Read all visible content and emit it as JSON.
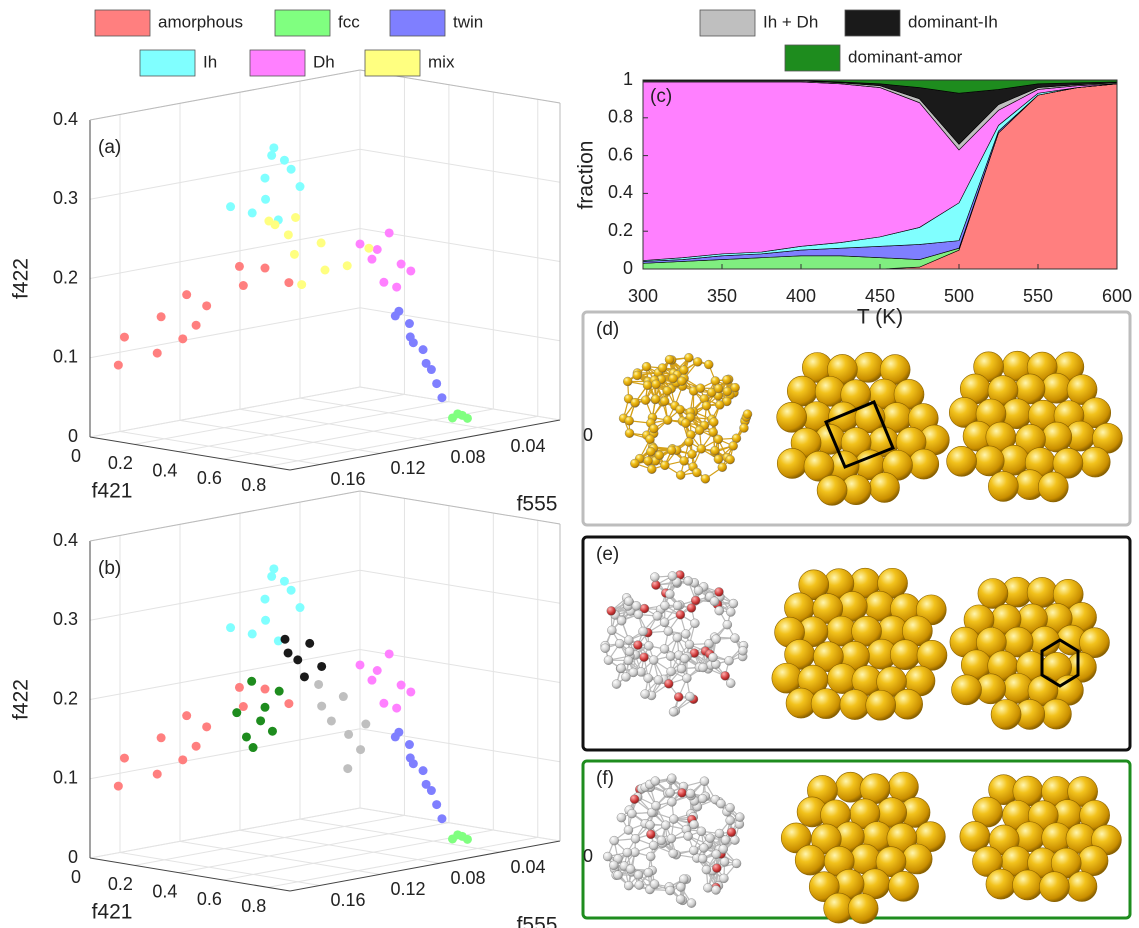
{
  "chart_data": [
    {
      "type": "scatter3d",
      "panel": "(a)",
      "xlabel": "f421",
      "ylabel": "f555",
      "zlabel": "f422",
      "xlim": [
        0,
        0.9
      ],
      "ylim": [
        0,
        0.18
      ],
      "zlim": [
        0,
        0.4
      ],
      "xticks": [
        0,
        0.2,
        0.4,
        0.6,
        0.8
      ],
      "yticks": [
        0,
        0.04,
        0.08,
        0.12,
        0.16
      ],
      "zticks": [
        0,
        0.1,
        0.2,
        0.3,
        0.4
      ],
      "series": [
        {
          "name": "amorphous",
          "color": "#ff7f7f",
          "x": [
            0.02,
            0.05,
            0.08,
            0.12,
            0.15,
            0.18,
            0.1,
            0.06,
            0.2,
            0.22,
            0.14,
            0.03
          ],
          "y": [
            0.16,
            0.14,
            0.13,
            0.12,
            0.1,
            0.09,
            0.15,
            0.17,
            0.11,
            0.08,
            0.13,
            0.12
          ],
          "z": [
            0.12,
            0.14,
            0.11,
            0.15,
            0.17,
            0.19,
            0.1,
            0.09,
            0.2,
            0.17,
            0.13,
            0.16
          ]
        },
        {
          "name": "fcc",
          "color": "#80ff80",
          "x": [
            0.72,
            0.73,
            0.74,
            0.73
          ],
          "y": [
            0.045,
            0.04,
            0.038,
            0.043
          ],
          "z": [
            0.01,
            0.012,
            0.008,
            0.015
          ]
        },
        {
          "name": "twin",
          "color": "#7f7fff",
          "x": [
            0.85,
            0.83,
            0.8,
            0.79,
            0.77,
            0.76,
            0.75,
            0.74,
            0.8,
            0.78
          ],
          "y": [
            0.1,
            0.09,
            0.085,
            0.075,
            0.07,
            0.065,
            0.06,
            0.055,
            0.095,
            0.08
          ],
          "z": [
            0.17,
            0.15,
            0.13,
            0.11,
            0.09,
            0.08,
            0.06,
            0.04,
            0.16,
            0.12
          ]
        },
        {
          "name": "Ih",
          "color": "#80ffff",
          "x": [
            0.45,
            0.48,
            0.5,
            0.52,
            0.46,
            0.54,
            0.49,
            0.43,
            0.51,
            0.47
          ],
          "y": [
            0.13,
            0.13,
            0.12,
            0.14,
            0.14,
            0.12,
            0.13,
            0.15,
            0.13,
            0.12
          ],
          "z": [
            0.33,
            0.36,
            0.34,
            0.31,
            0.29,
            0.32,
            0.37,
            0.3,
            0.28,
            0.35
          ]
        },
        {
          "name": "Dh",
          "color": "#ff80ff",
          "x": [
            0.82,
            0.84,
            0.86,
            0.83,
            0.85,
            0.87,
            0.81,
            0.84
          ],
          "y": [
            0.11,
            0.105,
            0.1,
            0.115,
            0.11,
            0.095,
            0.12,
            0.1
          ],
          "z": [
            0.25,
            0.27,
            0.23,
            0.24,
            0.21,
            0.22,
            0.26,
            0.2
          ]
        },
        {
          "name": "mix",
          "color": "#ffff80",
          "x": [
            0.38,
            0.42,
            0.45,
            0.5,
            0.55,
            0.4,
            0.48,
            0.58,
            0.36,
            0.52
          ],
          "y": [
            0.1,
            0.11,
            0.09,
            0.1,
            0.09,
            0.12,
            0.11,
            0.08,
            0.11,
            0.12
          ],
          "z": [
            0.22,
            0.25,
            0.2,
            0.24,
            0.21,
            0.27,
            0.19,
            0.23,
            0.26,
            0.28
          ]
        }
      ]
    },
    {
      "type": "scatter3d",
      "panel": "(b)",
      "xlabel": "f421",
      "ylabel": "f555",
      "zlabel": "f422",
      "xlim": [
        0,
        0.9
      ],
      "ylim": [
        0,
        0.18
      ],
      "zlim": [
        0,
        0.4
      ],
      "xticks": [
        0,
        0.2,
        0.4,
        0.6,
        0.8
      ],
      "yticks": [
        0,
        0.04,
        0.08,
        0.12,
        0.16
      ],
      "zticks": [
        0,
        0.1,
        0.2,
        0.3,
        0.4
      ],
      "series": [
        {
          "color": "#ff7f7f",
          "x": [
            0.02,
            0.05,
            0.08,
            0.12,
            0.15,
            0.18,
            0.1,
            0.06,
            0.2,
            0.22,
            0.14,
            0.03
          ],
          "y": [
            0.16,
            0.14,
            0.13,
            0.12,
            0.1,
            0.09,
            0.15,
            0.17,
            0.11,
            0.08,
            0.13,
            0.12
          ],
          "z": [
            0.12,
            0.14,
            0.11,
            0.15,
            0.17,
            0.19,
            0.1,
            0.09,
            0.2,
            0.17,
            0.13,
            0.16
          ]
        },
        {
          "color": "#80ff80",
          "x": [
            0.72,
            0.73,
            0.74,
            0.73
          ],
          "y": [
            0.045,
            0.04,
            0.038,
            0.043
          ],
          "z": [
            0.01,
            0.012,
            0.008,
            0.015
          ]
        },
        {
          "color": "#7f7fff",
          "x": [
            0.85,
            0.83,
            0.8,
            0.79,
            0.77,
            0.76,
            0.75,
            0.74,
            0.8,
            0.78
          ],
          "y": [
            0.1,
            0.09,
            0.085,
            0.075,
            0.07,
            0.065,
            0.06,
            0.055,
            0.095,
            0.08
          ],
          "z": [
            0.17,
            0.15,
            0.13,
            0.11,
            0.09,
            0.08,
            0.06,
            0.04,
            0.16,
            0.12
          ]
        },
        {
          "color": "#80ffff",
          "x": [
            0.45,
            0.48,
            0.5,
            0.52,
            0.46,
            0.54,
            0.49,
            0.43,
            0.51,
            0.47
          ],
          "y": [
            0.13,
            0.13,
            0.12,
            0.14,
            0.14,
            0.12,
            0.13,
            0.15,
            0.13,
            0.12
          ],
          "z": [
            0.33,
            0.36,
            0.34,
            0.31,
            0.29,
            0.32,
            0.37,
            0.3,
            0.28,
            0.35
          ]
        },
        {
          "color": "#ff80ff",
          "x": [
            0.82,
            0.84,
            0.86,
            0.83,
            0.85,
            0.87,
            0.81,
            0.84
          ],
          "y": [
            0.11,
            0.105,
            0.1,
            0.115,
            0.11,
            0.095,
            0.12,
            0.1
          ],
          "z": [
            0.25,
            0.27,
            0.23,
            0.24,
            0.21,
            0.22,
            0.26,
            0.2
          ]
        },
        {
          "name": "Ih + Dh",
          "color": "#bfbfbf",
          "x": [
            0.85,
            0.87,
            0.86,
            0.88,
            0.84,
            0.89,
            0.86,
            0.87
          ],
          "y": [
            0.145,
            0.14,
            0.135,
            0.13,
            0.15,
            0.14,
            0.155,
            0.125
          ],
          "z": [
            0.2,
            0.23,
            0.18,
            0.16,
            0.22,
            0.14,
            0.25,
            0.19
          ]
        },
        {
          "name": "dominant-Ih",
          "color": "#1a1a1a",
          "x": [
            0.8,
            0.82,
            0.84,
            0.79,
            0.83,
            0.81
          ],
          "y": [
            0.16,
            0.155,
            0.15,
            0.165,
            0.16,
            0.17
          ],
          "z": [
            0.28,
            0.3,
            0.27,
            0.29,
            0.26,
            0.31
          ]
        },
        {
          "name": "dominant-amor",
          "color": "#1e8c1e",
          "x": [
            0.68,
            0.72,
            0.65,
            0.75,
            0.7,
            0.62,
            0.74,
            0.66
          ],
          "y": [
            0.167,
            0.17,
            0.172,
            0.165,
            0.175,
            0.174,
            0.168,
            0.17
          ],
          "z": [
            0.2,
            0.22,
            0.18,
            0.24,
            0.17,
            0.21,
            0.19,
            0.25
          ]
        }
      ]
    },
    {
      "type": "area",
      "panel": "(c)",
      "xlabel": "T (K)",
      "ylabel": "fraction",
      "x": [
        300,
        325,
        350,
        375,
        400,
        425,
        450,
        475,
        500,
        525,
        550,
        575,
        600
      ],
      "xlim": [
        300,
        600
      ],
      "ylim": [
        0,
        1
      ],
      "xticks": [
        300,
        350,
        400,
        450,
        500,
        550,
        600
      ],
      "yticks": [
        0,
        0.2,
        0.4,
        0.6,
        0.8,
        1
      ],
      "series": [
        {
          "color": "#ff7f7f",
          "values": [
            0,
            0,
            0,
            0,
            0,
            0,
            0,
            0.01,
            0.1,
            0.72,
            0.92,
            0.96,
            0.98
          ]
        },
        {
          "color": "#80ee80",
          "values": [
            0.03,
            0.04,
            0.05,
            0.06,
            0.07,
            0.07,
            0.06,
            0.04,
            0.01,
            0,
            0,
            0,
            0
          ]
        },
        {
          "color": "#7f7fff",
          "values": [
            0.01,
            0.01,
            0.02,
            0.02,
            0.03,
            0.04,
            0.06,
            0.08,
            0.04,
            0.01,
            0,
            0,
            0
          ]
        },
        {
          "color": "#80ffff",
          "values": [
            0.005,
            0.01,
            0.01,
            0.01,
            0.02,
            0.03,
            0.05,
            0.09,
            0.2,
            0.03,
            0.01,
            0,
            0
          ]
        },
        {
          "color": "#ff80ff",
          "values": [
            0.945,
            0.93,
            0.91,
            0.9,
            0.87,
            0.84,
            0.79,
            0.66,
            0.28,
            0.08,
            0.02,
            0.01,
            0
          ]
        },
        {
          "color": "#bfbfbf",
          "values": [
            0.005,
            0.005,
            0.005,
            0.005,
            0.005,
            0.005,
            0.01,
            0.02,
            0.03,
            0.03,
            0.01,
            0.005,
            0.005
          ]
        },
        {
          "color": "#1a1a1a",
          "values": [
            0.003,
            0.003,
            0.003,
            0.003,
            0.003,
            0.005,
            0.01,
            0.06,
            0.27,
            0.08,
            0.02,
            0.01,
            0.005
          ]
        },
        {
          "color": "#1e8c1e",
          "values": [
            0.002,
            0.002,
            0.002,
            0.002,
            0.002,
            0.01,
            0.02,
            0.04,
            0.07,
            0.05,
            0.02,
            0.015,
            0.01
          ]
        }
      ]
    }
  ],
  "image_panels": [
    "(d)",
    "(e)",
    "(f)"
  ]
}
